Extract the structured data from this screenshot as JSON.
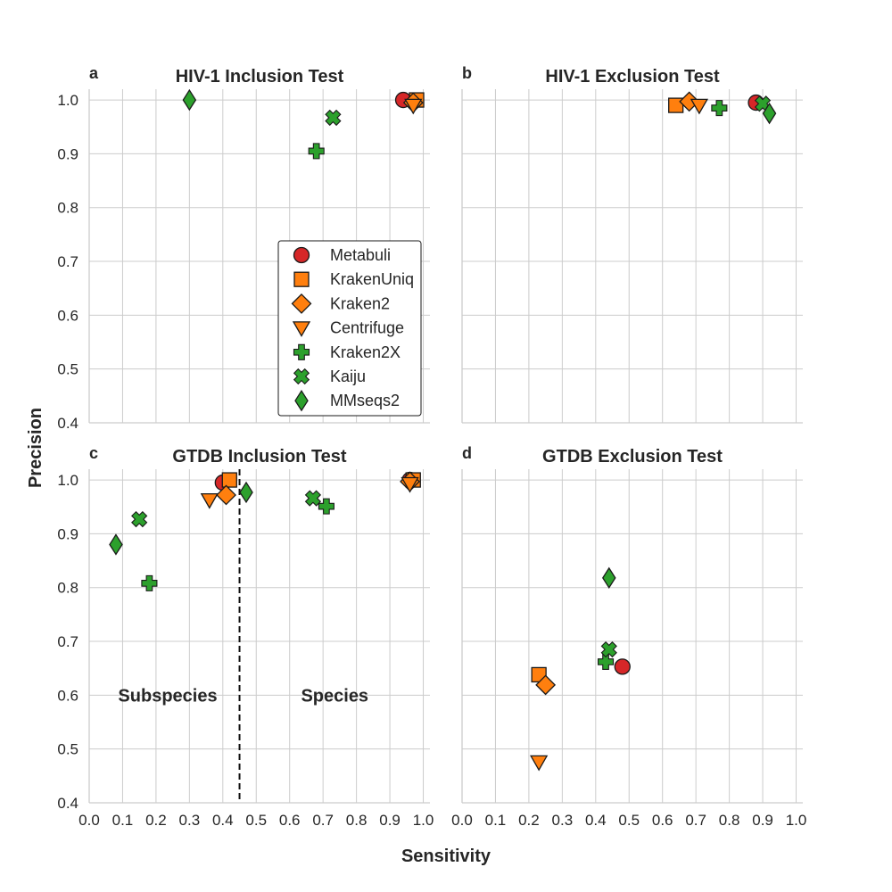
{
  "chart_data": [
    {
      "type": "scatter",
      "panel_letter": "a",
      "title": "HIV-1 Inclusion Test",
      "xlim": [
        0.0,
        1.0
      ],
      "ylim": [
        0.4,
        1.0
      ],
      "grid": true,
      "series": [
        {
          "name": "Metabuli",
          "points": [
            [
              0.94,
              1.0
            ]
          ]
        },
        {
          "name": "KrakenUniq",
          "points": [
            [
              0.98,
              1.0
            ]
          ]
        },
        {
          "name": "Kraken2",
          "points": [
            [
              0.97,
              0.995
            ]
          ]
        },
        {
          "name": "Centrifuge",
          "points": [
            [
              0.97,
              0.99
            ]
          ]
        },
        {
          "name": "Kraken2X",
          "points": [
            [
              0.68,
              0.905
            ]
          ]
        },
        {
          "name": "Kaiju",
          "points": [
            [
              0.73,
              0.967
            ]
          ]
        },
        {
          "name": "MMseqs2",
          "points": [
            [
              0.3,
              1.0
            ]
          ]
        }
      ]
    },
    {
      "type": "scatter",
      "panel_letter": "b",
      "title": "HIV-1 Exclusion Test",
      "xlim": [
        0.0,
        1.0
      ],
      "ylim": [
        0.4,
        1.0
      ],
      "grid": true,
      "series": [
        {
          "name": "Metabuli",
          "points": [
            [
              0.88,
              0.995
            ]
          ]
        },
        {
          "name": "KrakenUniq",
          "points": [
            [
              0.64,
              0.99
            ]
          ]
        },
        {
          "name": "Kraken2",
          "points": [
            [
              0.68,
              0.997
            ]
          ]
        },
        {
          "name": "Centrifuge",
          "points": [
            [
              0.71,
              0.99
            ]
          ]
        },
        {
          "name": "Kraken2X",
          "points": [
            [
              0.77,
              0.985
            ]
          ]
        },
        {
          "name": "Kaiju",
          "points": [
            [
              0.9,
              0.993
            ]
          ]
        },
        {
          "name": "MMseqs2",
          "points": [
            [
              0.92,
              0.975
            ]
          ]
        }
      ]
    },
    {
      "type": "scatter",
      "panel_letter": "c",
      "title": "GTDB Inclusion Test",
      "xlim": [
        0.0,
        1.0
      ],
      "ylim": [
        0.4,
        1.0
      ],
      "grid": true,
      "vline": 0.45,
      "annotations": [
        {
          "text": "Subspecies",
          "x": 0.235,
          "y": 0.6
        },
        {
          "text": "Species",
          "x": 0.735,
          "y": 0.6
        }
      ],
      "series": [
        {
          "name": "Metabuli",
          "points": [
            [
              0.4,
              0.995
            ],
            [
              0.96,
              1.0
            ]
          ]
        },
        {
          "name": "KrakenUniq",
          "points": [
            [
              0.42,
              1.0
            ],
            [
              0.97,
              1.0
            ]
          ]
        },
        {
          "name": "Kraken2",
          "points": [
            [
              0.41,
              0.972
            ],
            [
              0.96,
              0.997
            ]
          ]
        },
        {
          "name": "Centrifuge",
          "points": [
            [
              0.36,
              0.963
            ],
            [
              0.96,
              0.993
            ]
          ]
        },
        {
          "name": "Kraken2X",
          "points": [
            [
              0.18,
              0.808
            ],
            [
              0.71,
              0.951
            ]
          ]
        },
        {
          "name": "Kaiju",
          "points": [
            [
              0.15,
              0.927
            ],
            [
              0.67,
              0.966
            ]
          ]
        },
        {
          "name": "MMseqs2",
          "points": [
            [
              0.08,
              0.88
            ],
            [
              0.47,
              0.977
            ]
          ]
        }
      ]
    },
    {
      "type": "scatter",
      "panel_letter": "d",
      "title": "GTDB Exclusion Test",
      "xlim": [
        0.0,
        1.0
      ],
      "ylim": [
        0.4,
        1.0
      ],
      "grid": true,
      "series": [
        {
          "name": "Metabuli",
          "points": [
            [
              0.48,
              0.653
            ]
          ]
        },
        {
          "name": "KrakenUniq",
          "points": [
            [
              0.23,
              0.638
            ]
          ]
        },
        {
          "name": "Kraken2",
          "points": [
            [
              0.25,
              0.619
            ]
          ]
        },
        {
          "name": "Centrifuge",
          "points": [
            [
              0.23,
              0.476
            ]
          ]
        },
        {
          "name": "Kraken2X",
          "points": [
            [
              0.43,
              0.662
            ]
          ]
        },
        {
          "name": "Kaiju",
          "points": [
            [
              0.44,
              0.685
            ]
          ]
        },
        {
          "name": "MMseqs2",
          "points": [
            [
              0.44,
              0.818
            ]
          ]
        }
      ]
    }
  ],
  "x_ticks": [
    "0.0",
    "0.1",
    "0.2",
    "0.3",
    "0.4",
    "0.5",
    "0.6",
    "0.7",
    "0.8",
    "0.9",
    "1.0"
  ],
  "y_ticks": [
    "0.4",
    "0.5",
    "0.6",
    "0.7",
    "0.8",
    "0.9",
    "1.0"
  ],
  "xlabel": "Sensitivity",
  "ylabel": "Precision",
  "legend": {
    "placement": "panel-a lower-right",
    "entries": [
      {
        "name": "Metabuli",
        "marker": "circle",
        "color": "#d62728"
      },
      {
        "name": "KrakenUniq",
        "marker": "square",
        "color": "#ff7f0e"
      },
      {
        "name": "Kraken2",
        "marker": "diamond",
        "color": "#ff7f0e"
      },
      {
        "name": "Centrifuge",
        "marker": "triangle-down",
        "color": "#ff7f0e"
      },
      {
        "name": "Kraken2X",
        "marker": "plus",
        "color": "#2ca02c"
      },
      {
        "name": "Kaiju",
        "marker": "x",
        "color": "#2ca02c"
      },
      {
        "name": "MMseqs2",
        "marker": "thin-diamond",
        "color": "#2ca02c"
      }
    ]
  }
}
